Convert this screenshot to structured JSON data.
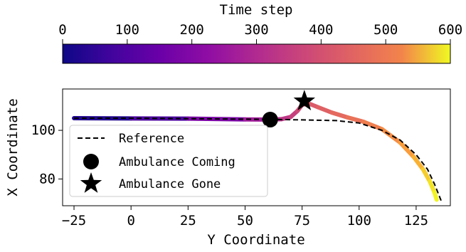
{
  "chart_data": {
    "type": "line",
    "colorbar": {
      "label": "Time step",
      "range": [
        0,
        600
      ],
      "ticks": [
        0,
        100,
        200,
        300,
        400,
        500,
        600
      ],
      "colormap": "plasma"
    },
    "xlabel": "Y Coordinate",
    "ylabel": "X Coordinate",
    "xlim": [
      -30,
      140
    ],
    "ylim": [
      69,
      117
    ],
    "xticks": [
      -25,
      0,
      25,
      50,
      75,
      100,
      125
    ],
    "yticks": [
      80,
      100
    ],
    "legend": {
      "placement": "lower-left",
      "entries": [
        {
          "label": "Reference",
          "style": "dashed-line"
        },
        {
          "label": "Ambulance Coming",
          "style": "circle-marker"
        },
        {
          "label": "Ambulance Gone",
          "style": "star-marker"
        }
      ]
    },
    "series": [
      {
        "name": "Reference",
        "style": "dashed",
        "color": "#000000",
        "x": [
          -25,
          0,
          25,
          50,
          61,
          75,
          90,
          100,
          110,
          118,
          125,
          130,
          133,
          136
        ],
        "y": [
          105,
          105,
          104.8,
          104.6,
          104.5,
          104.3,
          104,
          103,
          100,
          96,
          90,
          84,
          78,
          71
        ]
      },
      {
        "name": "",
        "style": "colored-by-time",
        "x": [
          -25,
          0,
          25,
          50,
          61,
          66,
          70,
          73,
          75,
          78,
          82,
          88,
          95,
          102,
          110,
          118,
          124,
          128,
          131,
          133,
          134
        ],
        "y": [
          105,
          104.9,
          104.8,
          104.5,
          104.4,
          104.6,
          105.5,
          108,
          110.5,
          111,
          109.5,
          107.3,
          105.3,
          103.5,
          100.5,
          95,
          89,
          84,
          79,
          74.5,
          71.5
        ],
        "t": [
          0,
          50,
          120,
          210,
          260,
          285,
          305,
          330,
          350,
          370,
          385,
          400,
          420,
          440,
          470,
          500,
          530,
          555,
          575,
          592,
          600
        ]
      }
    ],
    "markers": [
      {
        "label": "Ambulance Coming",
        "shape": "circle",
        "x": 61,
        "y": 104.4
      },
      {
        "label": "Ambulance Gone",
        "shape": "star",
        "x": 76,
        "y": 112
      }
    ]
  }
}
